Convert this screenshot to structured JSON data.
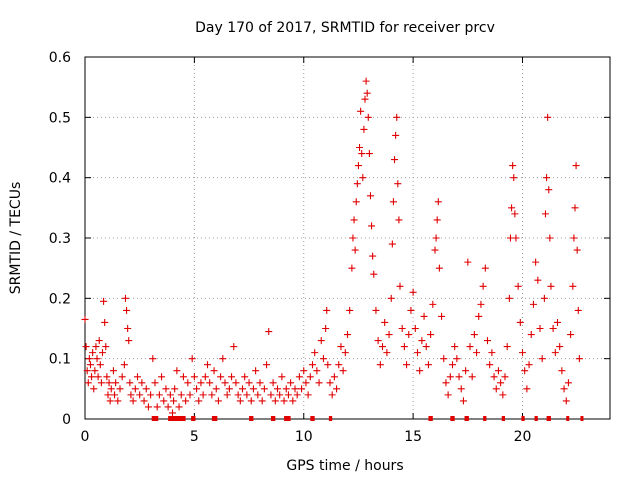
{
  "chart_data": {
    "type": "scatter",
    "title": "Day 170 of 2017, SRMTID for receiver prcv",
    "xlabel": "GPS time / hours",
    "ylabel": "SRMTID / TECUs",
    "xlim": [
      0,
      24
    ],
    "ylim": [
      0,
      0.6
    ],
    "xticks": [
      0,
      5,
      10,
      15,
      20
    ],
    "xtick_labels": [
      "0",
      "5",
      "10",
      "15",
      "20"
    ],
    "yticks": [
      0,
      0.1,
      0.2,
      0.3,
      0.4,
      0.5,
      0.6
    ],
    "ytick_labels": [
      "0",
      "0.1",
      "0.2",
      "0.3",
      "0.4",
      "0.5",
      "0.6"
    ],
    "grid": true,
    "marker": "+",
    "color": "#e00000",
    "series": [
      {
        "name": "SRMTID",
        "points": [
          [
            0.0,
            0.165
          ],
          [
            0.05,
            0.12
          ],
          [
            0.1,
            0.08
          ],
          [
            0.15,
            0.06
          ],
          [
            0.2,
            0.1
          ],
          [
            0.25,
            0.09
          ],
          [
            0.3,
            0.07
          ],
          [
            0.35,
            0.11
          ],
          [
            0.4,
            0.05
          ],
          [
            0.45,
            0.08
          ],
          [
            0.5,
            0.12
          ],
          [
            0.55,
            0.1
          ],
          [
            0.6,
            0.07
          ],
          [
            0.65,
            0.13
          ],
          [
            0.7,
            0.09
          ],
          [
            0.75,
            0.06
          ],
          [
            0.8,
            0.11
          ],
          [
            0.85,
            0.195
          ],
          [
            0.9,
            0.16
          ],
          [
            0.95,
            0.12
          ],
          [
            1.0,
            0.07
          ],
          [
            1.05,
            0.04
          ],
          [
            1.1,
            0.06
          ],
          [
            1.15,
            0.03
          ],
          [
            1.2,
            0.05
          ],
          [
            1.3,
            0.08
          ],
          [
            1.35,
            0.04
          ],
          [
            1.4,
            0.06
          ],
          [
            1.5,
            0.03
          ],
          [
            1.6,
            0.05
          ],
          [
            1.7,
            0.07
          ],
          [
            1.8,
            0.09
          ],
          [
            1.85,
            0.2
          ],
          [
            1.9,
            0.18
          ],
          [
            1.95,
            0.15
          ],
          [
            2.0,
            0.13
          ],
          [
            2.05,
            0.06
          ],
          [
            2.1,
            0.04
          ],
          [
            2.2,
            0.03
          ],
          [
            2.3,
            0.05
          ],
          [
            2.4,
            0.07
          ],
          [
            2.5,
            0.04
          ],
          [
            2.6,
            0.06
          ],
          [
            2.7,
            0.03
          ],
          [
            2.8,
            0.05
          ],
          [
            2.9,
            0.02
          ],
          [
            3.0,
            0.04
          ],
          [
            3.1,
            0.1
          ],
          [
            3.2,
            0.06
          ],
          [
            3.3,
            0.02
          ],
          [
            3.4,
            0.04
          ],
          [
            3.5,
            0.07
          ],
          [
            3.6,
            0.03
          ],
          [
            3.7,
            0.05
          ],
          [
            3.8,
            0.02
          ],
          [
            3.9,
            0.04
          ],
          [
            4.0,
            0.01
          ],
          [
            4.05,
            0.03
          ],
          [
            4.1,
            0.05
          ],
          [
            4.2,
            0.08
          ],
          [
            4.3,
            0.02
          ],
          [
            4.4,
            0.04
          ],
          [
            4.5,
            0.07
          ],
          [
            4.6,
            0.03
          ],
          [
            4.7,
            0.06
          ],
          [
            4.8,
            0.04
          ],
          [
            4.9,
            0.1
          ],
          [
            5.0,
            0.07
          ],
          [
            5.1,
            0.05
          ],
          [
            5.2,
            0.03
          ],
          [
            5.3,
            0.06
          ],
          [
            5.4,
            0.04
          ],
          [
            5.5,
            0.07
          ],
          [
            5.6,
            0.09
          ],
          [
            5.7,
            0.06
          ],
          [
            5.8,
            0.04
          ],
          [
            5.9,
            0.08
          ],
          [
            6.0,
            0.05
          ],
          [
            6.1,
            0.03
          ],
          [
            6.2,
            0.07
          ],
          [
            6.3,
            0.1
          ],
          [
            6.4,
            0.06
          ],
          [
            6.5,
            0.04
          ],
          [
            6.6,
            0.05
          ],
          [
            6.7,
            0.07
          ],
          [
            6.8,
            0.12
          ],
          [
            6.9,
            0.06
          ],
          [
            7.0,
            0.04
          ],
          [
            7.1,
            0.03
          ],
          [
            7.2,
            0.05
          ],
          [
            7.3,
            0.07
          ],
          [
            7.4,
            0.04
          ],
          [
            7.5,
            0.06
          ],
          [
            7.6,
            0.03
          ],
          [
            7.7,
            0.05
          ],
          [
            7.8,
            0.08
          ],
          [
            7.9,
            0.04
          ],
          [
            8.0,
            0.06
          ],
          [
            8.1,
            0.03
          ],
          [
            8.2,
            0.05
          ],
          [
            8.3,
            0.09
          ],
          [
            8.4,
            0.145
          ],
          [
            8.5,
            0.04
          ],
          [
            8.6,
            0.06
          ],
          [
            8.7,
            0.03
          ],
          [
            8.8,
            0.05
          ],
          [
            8.9,
            0.04
          ],
          [
            9.0,
            0.07
          ],
          [
            9.1,
            0.03
          ],
          [
            9.2,
            0.05
          ],
          [
            9.3,
            0.04
          ],
          [
            9.4,
            0.06
          ],
          [
            9.5,
            0.03
          ],
          [
            9.6,
            0.05
          ],
          [
            9.7,
            0.04
          ],
          [
            9.8,
            0.07
          ],
          [
            9.9,
            0.05
          ],
          [
            10.0,
            0.08
          ],
          [
            10.1,
            0.06
          ],
          [
            10.2,
            0.04
          ],
          [
            10.3,
            0.07
          ],
          [
            10.4,
            0.09
          ],
          [
            10.5,
            0.11
          ],
          [
            10.6,
            0.08
          ],
          [
            10.7,
            0.06
          ],
          [
            10.8,
            0.13
          ],
          [
            10.9,
            0.1
          ],
          [
            11.0,
            0.15
          ],
          [
            11.05,
            0.18
          ],
          [
            11.1,
            0.09
          ],
          [
            11.2,
            0.06
          ],
          [
            11.3,
            0.04
          ],
          [
            11.4,
            0.07
          ],
          [
            11.5,
            0.05
          ],
          [
            11.6,
            0.09
          ],
          [
            11.7,
            0.12
          ],
          [
            11.8,
            0.08
          ],
          [
            11.9,
            0.11
          ],
          [
            12.0,
            0.14
          ],
          [
            12.1,
            0.18
          ],
          [
            12.2,
            0.25
          ],
          [
            12.25,
            0.3
          ],
          [
            12.3,
            0.33
          ],
          [
            12.35,
            0.28
          ],
          [
            12.4,
            0.36
          ],
          [
            12.45,
            0.39
          ],
          [
            12.5,
            0.42
          ],
          [
            12.55,
            0.45
          ],
          [
            12.6,
            0.51
          ],
          [
            12.65,
            0.44
          ],
          [
            12.7,
            0.4
          ],
          [
            12.75,
            0.48
          ],
          [
            12.8,
            0.53
          ],
          [
            12.85,
            0.56
          ],
          [
            12.9,
            0.54
          ],
          [
            12.95,
            0.5
          ],
          [
            13.0,
            0.44
          ],
          [
            13.05,
            0.37
          ],
          [
            13.1,
            0.32
          ],
          [
            13.15,
            0.27
          ],
          [
            13.2,
            0.24
          ],
          [
            13.3,
            0.18
          ],
          [
            13.4,
            0.13
          ],
          [
            13.5,
            0.09
          ],
          [
            13.6,
            0.12
          ],
          [
            13.7,
            0.16
          ],
          [
            13.8,
            0.11
          ],
          [
            13.9,
            0.14
          ],
          [
            14.0,
            0.2
          ],
          [
            14.05,
            0.29
          ],
          [
            14.1,
            0.36
          ],
          [
            14.15,
            0.43
          ],
          [
            14.2,
            0.47
          ],
          [
            14.25,
            0.5
          ],
          [
            14.3,
            0.39
          ],
          [
            14.35,
            0.33
          ],
          [
            14.4,
            0.22
          ],
          [
            14.5,
            0.15
          ],
          [
            14.6,
            0.12
          ],
          [
            14.7,
            0.09
          ],
          [
            14.8,
            0.14
          ],
          [
            14.9,
            0.18
          ],
          [
            15.0,
            0.21
          ],
          [
            15.1,
            0.15
          ],
          [
            15.2,
            0.11
          ],
          [
            15.3,
            0.08
          ],
          [
            15.4,
            0.13
          ],
          [
            15.5,
            0.17
          ],
          [
            15.6,
            0.12
          ],
          [
            15.7,
            0.09
          ],
          [
            15.8,
            0.14
          ],
          [
            15.9,
            0.19
          ],
          [
            16.0,
            0.28
          ],
          [
            16.05,
            0.3
          ],
          [
            16.1,
            0.33
          ],
          [
            16.15,
            0.36
          ],
          [
            16.2,
            0.25
          ],
          [
            16.3,
            0.17
          ],
          [
            16.4,
            0.1
          ],
          [
            16.5,
            0.06
          ],
          [
            16.6,
            0.04
          ],
          [
            16.7,
            0.07
          ],
          [
            16.8,
            0.09
          ],
          [
            16.9,
            0.12
          ],
          [
            17.0,
            0.1
          ],
          [
            17.1,
            0.07
          ],
          [
            17.2,
            0.05
          ],
          [
            17.3,
            0.03
          ],
          [
            17.4,
            0.08
          ],
          [
            17.5,
            0.26
          ],
          [
            17.6,
            0.12
          ],
          [
            17.7,
            0.07
          ],
          [
            17.8,
            0.14
          ],
          [
            17.9,
            0.11
          ],
          [
            18.0,
            0.17
          ],
          [
            18.1,
            0.19
          ],
          [
            18.2,
            0.22
          ],
          [
            18.3,
            0.25
          ],
          [
            18.4,
            0.13
          ],
          [
            18.5,
            0.09
          ],
          [
            18.6,
            0.11
          ],
          [
            18.7,
            0.07
          ],
          [
            18.8,
            0.05
          ],
          [
            18.9,
            0.08
          ],
          [
            19.0,
            0.06
          ],
          [
            19.1,
            0.04
          ],
          [
            19.2,
            0.07
          ],
          [
            19.3,
            0.12
          ],
          [
            19.4,
            0.2
          ],
          [
            19.45,
            0.3
          ],
          [
            19.5,
            0.35
          ],
          [
            19.55,
            0.42
          ],
          [
            19.6,
            0.4
          ],
          [
            19.65,
            0.34
          ],
          [
            19.7,
            0.3
          ],
          [
            19.8,
            0.22
          ],
          [
            19.9,
            0.16
          ],
          [
            20.0,
            0.11
          ],
          [
            20.1,
            0.08
          ],
          [
            20.2,
            0.05
          ],
          [
            20.3,
            0.09
          ],
          [
            20.4,
            0.14
          ],
          [
            20.5,
            0.19
          ],
          [
            20.6,
            0.26
          ],
          [
            20.7,
            0.23
          ],
          [
            20.8,
            0.15
          ],
          [
            20.9,
            0.1
          ],
          [
            21.0,
            0.2
          ],
          [
            21.05,
            0.34
          ],
          [
            21.1,
            0.4
          ],
          [
            21.15,
            0.5
          ],
          [
            21.2,
            0.38
          ],
          [
            21.25,
            0.3
          ],
          [
            21.3,
            0.22
          ],
          [
            21.4,
            0.15
          ],
          [
            21.5,
            0.11
          ],
          [
            21.6,
            0.16
          ],
          [
            21.7,
            0.12
          ],
          [
            21.8,
            0.08
          ],
          [
            21.9,
            0.05
          ],
          [
            22.0,
            0.03
          ],
          [
            22.1,
            0.06
          ],
          [
            22.2,
            0.14
          ],
          [
            22.3,
            0.22
          ],
          [
            22.35,
            0.3
          ],
          [
            22.4,
            0.35
          ],
          [
            22.45,
            0.42
          ],
          [
            22.5,
            0.28
          ],
          [
            22.55,
            0.18
          ],
          [
            22.6,
            0.1
          ]
        ]
      }
    ],
    "zero_segments_x": [
      [
        3.05,
        3.35
      ],
      [
        3.8,
        4.6
      ],
      [
        4.85,
        5.05
      ],
      [
        5.8,
        6.05
      ],
      [
        7.5,
        7.7
      ],
      [
        8.5,
        8.7
      ],
      [
        9.1,
        9.4
      ],
      [
        10.3,
        10.5
      ],
      [
        11.15,
        11.3
      ],
      [
        15.7,
        15.9
      ],
      [
        16.7,
        16.9
      ],
      [
        17.35,
        17.55
      ],
      [
        18.2,
        18.35
      ],
      [
        19.05,
        19.2
      ],
      [
        19.95,
        20.1
      ],
      [
        20.55,
        20.7
      ],
      [
        21.1,
        21.3
      ],
      [
        22.0,
        22.1
      ],
      [
        22.65,
        22.75
      ]
    ]
  }
}
